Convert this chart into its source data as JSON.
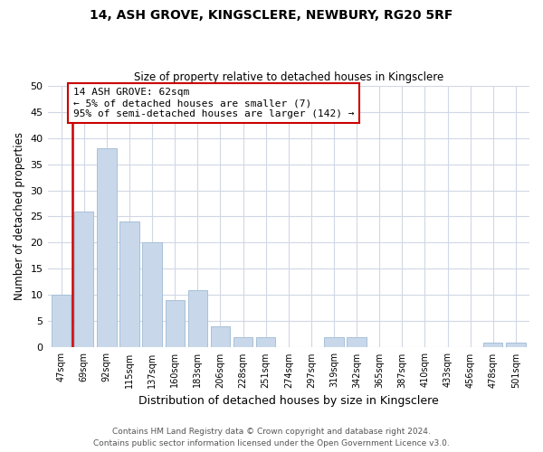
{
  "title": "14, ASH GROVE, KINGSCLERE, NEWBURY, RG20 5RF",
  "subtitle": "Size of property relative to detached houses in Kingsclere",
  "xlabel": "Distribution of detached houses by size in Kingsclere",
  "ylabel": "Number of detached properties",
  "bar_labels": [
    "47sqm",
    "69sqm",
    "92sqm",
    "115sqm",
    "137sqm",
    "160sqm",
    "183sqm",
    "206sqm",
    "228sqm",
    "251sqm",
    "274sqm",
    "297sqm",
    "319sqm",
    "342sqm",
    "365sqm",
    "387sqm",
    "410sqm",
    "433sqm",
    "456sqm",
    "478sqm",
    "501sqm"
  ],
  "bar_values": [
    10,
    26,
    38,
    24,
    20,
    9,
    11,
    4,
    2,
    2,
    0,
    0,
    2,
    2,
    0,
    0,
    0,
    0,
    0,
    1,
    1
  ],
  "bar_color": "#c8d8ea",
  "bar_edge_color": "#a8c0d8",
  "highlight_color": "#cc0000",
  "annotation_line1": "14 ASH GROVE: 62sqm",
  "annotation_line2": "← 5% of detached houses are smaller (7)",
  "annotation_line3": "95% of semi-detached houses are larger (142) →",
  "annotation_box_color": "#ffffff",
  "annotation_box_edgecolor": "#cc0000",
  "ylim": [
    0,
    50
  ],
  "yticks": [
    0,
    5,
    10,
    15,
    20,
    25,
    30,
    35,
    40,
    45,
    50
  ],
  "grid_color": "#d0d8e4",
  "bg_color": "#ffffff",
  "footer_line1": "Contains HM Land Registry data © Crown copyright and database right 2024.",
  "footer_line2": "Contains public sector information licensed under the Open Government Licence v3.0."
}
